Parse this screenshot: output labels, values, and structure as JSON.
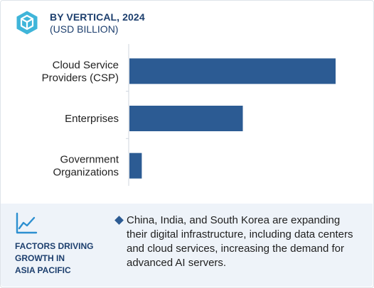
{
  "header": {
    "title": "BY VERTICAL, 2024",
    "subtitle": "(USD BILLION)",
    "logo_icon": "hexagon-cube-logo-icon"
  },
  "colors": {
    "bar": "#2c5b93",
    "accent": "#1d3f6e",
    "footer_bg": "#eef3f9"
  },
  "chart_data": {
    "type": "bar",
    "orientation": "horizontal",
    "categories": [
      [
        "Cloud Service",
        "Providers (CSP)"
      ],
      [
        "Enterprises"
      ],
      [
        "Government",
        "Organizations"
      ]
    ],
    "values": [
      100,
      55,
      6
    ],
    "xlim": [
      0,
      100
    ],
    "title": "",
    "xlabel": "",
    "ylabel": "",
    "grid": false
  },
  "footer": {
    "icon": "trend-line-chart-icon",
    "heading_lines": [
      "FACTORS DRIVING",
      "GROWTH IN",
      "ASIA PACIFIC"
    ],
    "bullet": "China, India, and South Korea are expanding their digital infrastructure, including data centers and cloud services, increasing the demand for advanced AI servers."
  }
}
